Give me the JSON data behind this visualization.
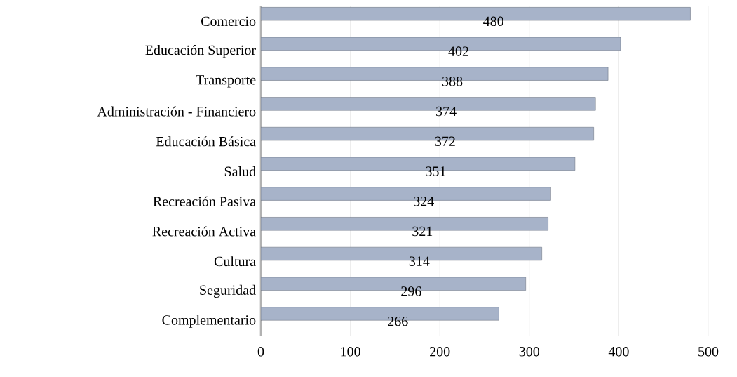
{
  "chart_data": {
    "type": "bar",
    "orientation": "horizontal",
    "categories": [
      "Comercio",
      "Educación Superior",
      "Transporte",
      "Administración - Financiero",
      "Educación Básica",
      "Salud",
      "Recreación Pasiva",
      "Recreación Activa",
      "Cultura",
      "Seguridad",
      "Complementario"
    ],
    "values": [
      480,
      402,
      388,
      374,
      372,
      351,
      324,
      321,
      314,
      296,
      266
    ],
    "color": "#a7b3c9",
    "xlim": [
      0,
      500
    ],
    "xticks": [
      0,
      100,
      200,
      300,
      400,
      500
    ],
    "grid": "x",
    "data_labels": true
  }
}
